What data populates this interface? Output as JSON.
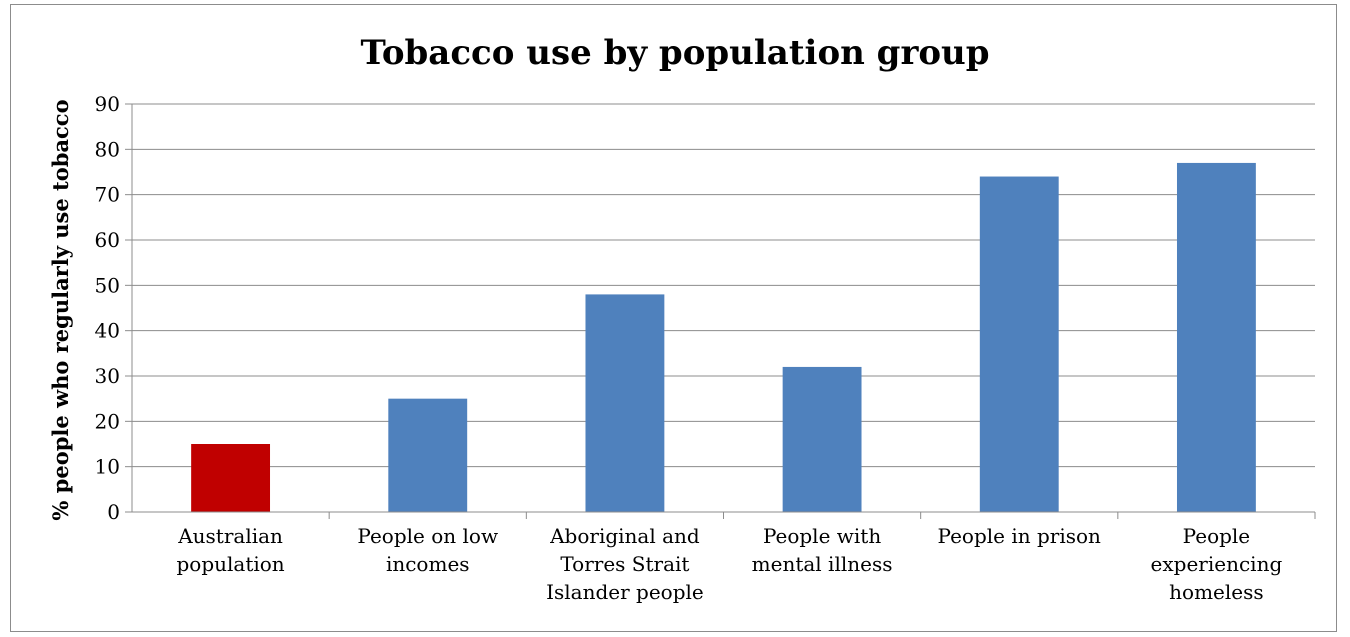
{
  "chart_data": {
    "type": "bar",
    "title": "Tobacco use by population group",
    "xlabel": "",
    "ylabel": "% people who regularly use tobacco",
    "ylim": [
      0,
      90
    ],
    "yticks": [
      0,
      10,
      20,
      30,
      40,
      50,
      60,
      70,
      80,
      90
    ],
    "grid": true,
    "legend": "none",
    "categories": [
      [
        "Australian",
        "population"
      ],
      [
        "People on low",
        "incomes"
      ],
      [
        "Aboriginal and",
        "Torres Strait",
        "Islander people"
      ],
      [
        "People with",
        "mental illness"
      ],
      [
        "People in prison"
      ],
      [
        "People",
        "experiencing",
        "homeless"
      ]
    ],
    "values": [
      15,
      25,
      48,
      32,
      74,
      77
    ],
    "bar_colors": [
      "#c00000",
      "#4f81bd",
      "#4f81bd",
      "#4f81bd",
      "#4f81bd",
      "#4f81bd"
    ]
  }
}
